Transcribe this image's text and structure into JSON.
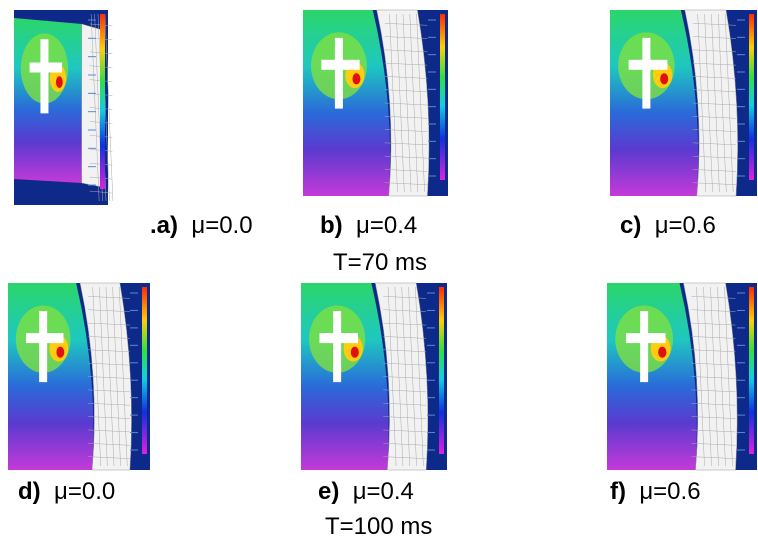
{
  "panels": [
    {
      "letter": ".a)",
      "label": "μ=0.0"
    },
    {
      "letter": "b)",
      "label": "μ=0.4"
    },
    {
      "letter": "c)",
      "label": "μ=0.6"
    },
    {
      "letter": "d)",
      "label": "μ=0.0"
    },
    {
      "letter": "e)",
      "label": "μ=0.4"
    },
    {
      "letter": "f)",
      "label": "μ=0.6"
    }
  ],
  "groups": [
    {
      "label": "T=70 ms"
    },
    {
      "label": "T=100 ms"
    }
  ]
}
